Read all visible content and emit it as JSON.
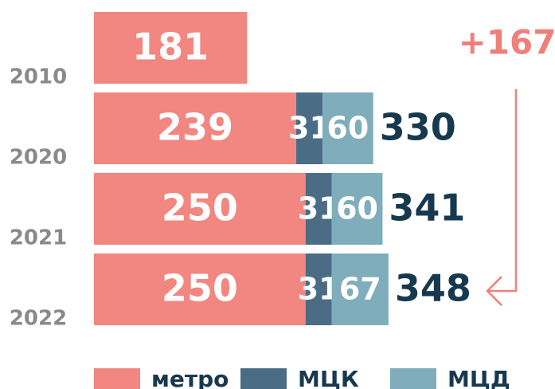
{
  "chart_data": {
    "type": "stacked-barh",
    "categories": [
      "2010",
      "2020",
      "2021",
      "2022"
    ],
    "series": [
      {
        "name": "метро",
        "color": "#f28680",
        "values": [
          181,
          239,
          250,
          250
        ]
      },
      {
        "name": "МЦК",
        "color": "#4a6d85",
        "values": [
          null,
          31,
          31,
          31
        ]
      },
      {
        "name": "МЦД",
        "color": "#7fadbb",
        "values": [
          null,
          60,
          60,
          67
        ]
      }
    ],
    "totals": [
      null,
      330,
      341,
      348
    ],
    "annotation": "+167",
    "xlim": [
      0,
      350
    ]
  }
}
